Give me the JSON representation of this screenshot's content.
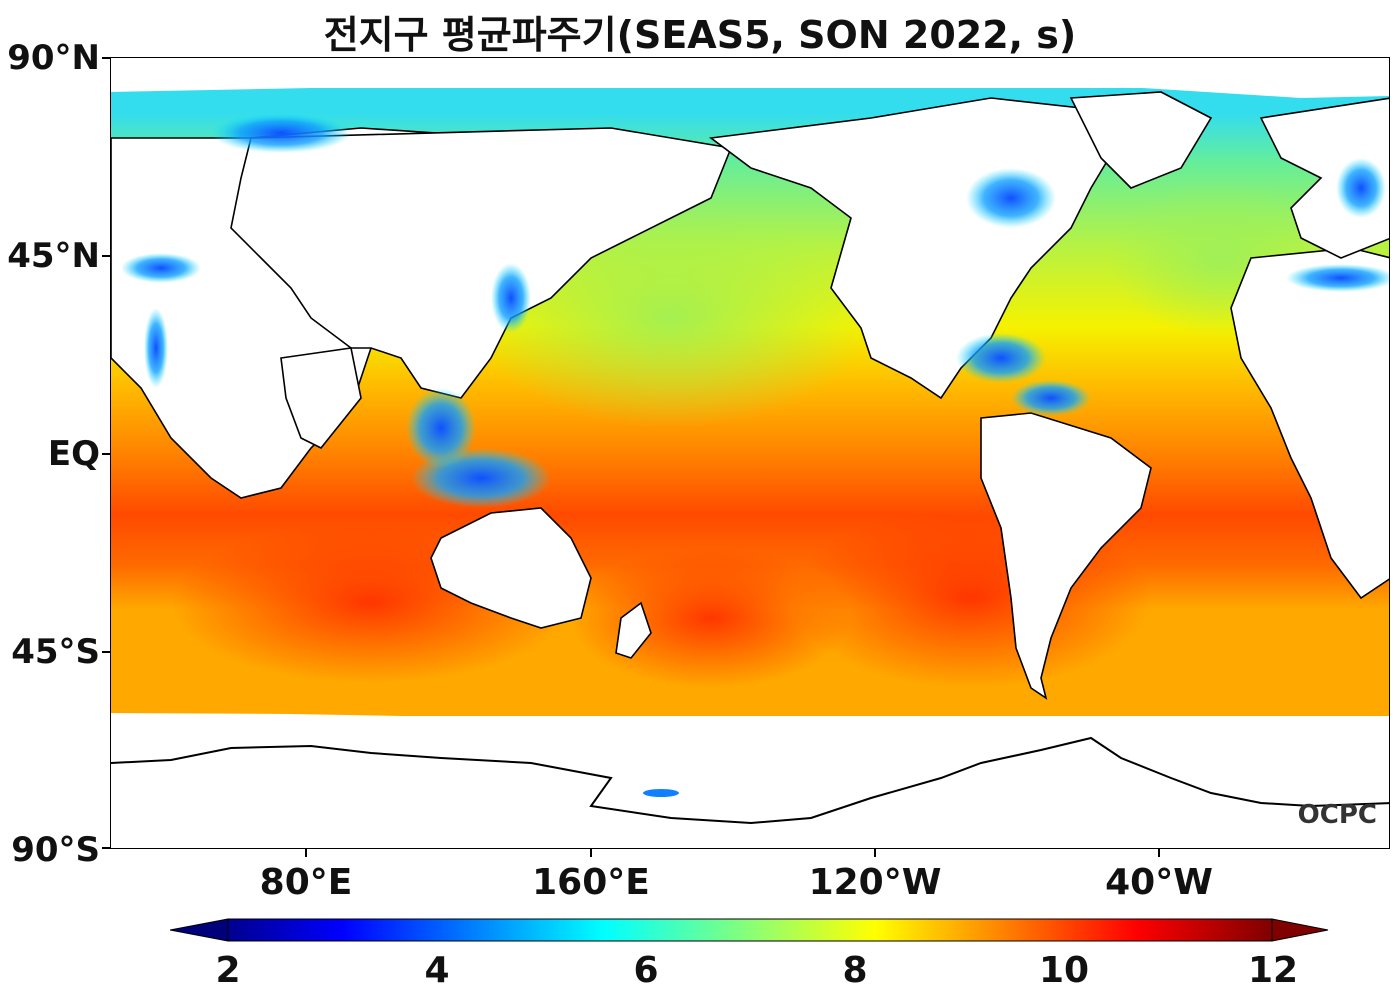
{
  "title": "전지구 평균파주기(SEAS5, SON 2022, s)",
  "y_axis": {
    "ticks": [
      "90°N",
      "45°N",
      "EQ",
      "45°S",
      "90°S"
    ]
  },
  "x_axis": {
    "ticks": [
      "80°E",
      "160°E",
      "120°W",
      "40°W"
    ]
  },
  "colorbar": {
    "ticks": [
      "2",
      "4",
      "6",
      "8",
      "10",
      "12"
    ],
    "range": [
      2,
      12
    ],
    "colormap": "jet",
    "extend": "both"
  },
  "logo": "OCPC",
  "colors": {
    "land": "#ffffff",
    "coast": "#000000",
    "ice": "#ffffff"
  }
}
